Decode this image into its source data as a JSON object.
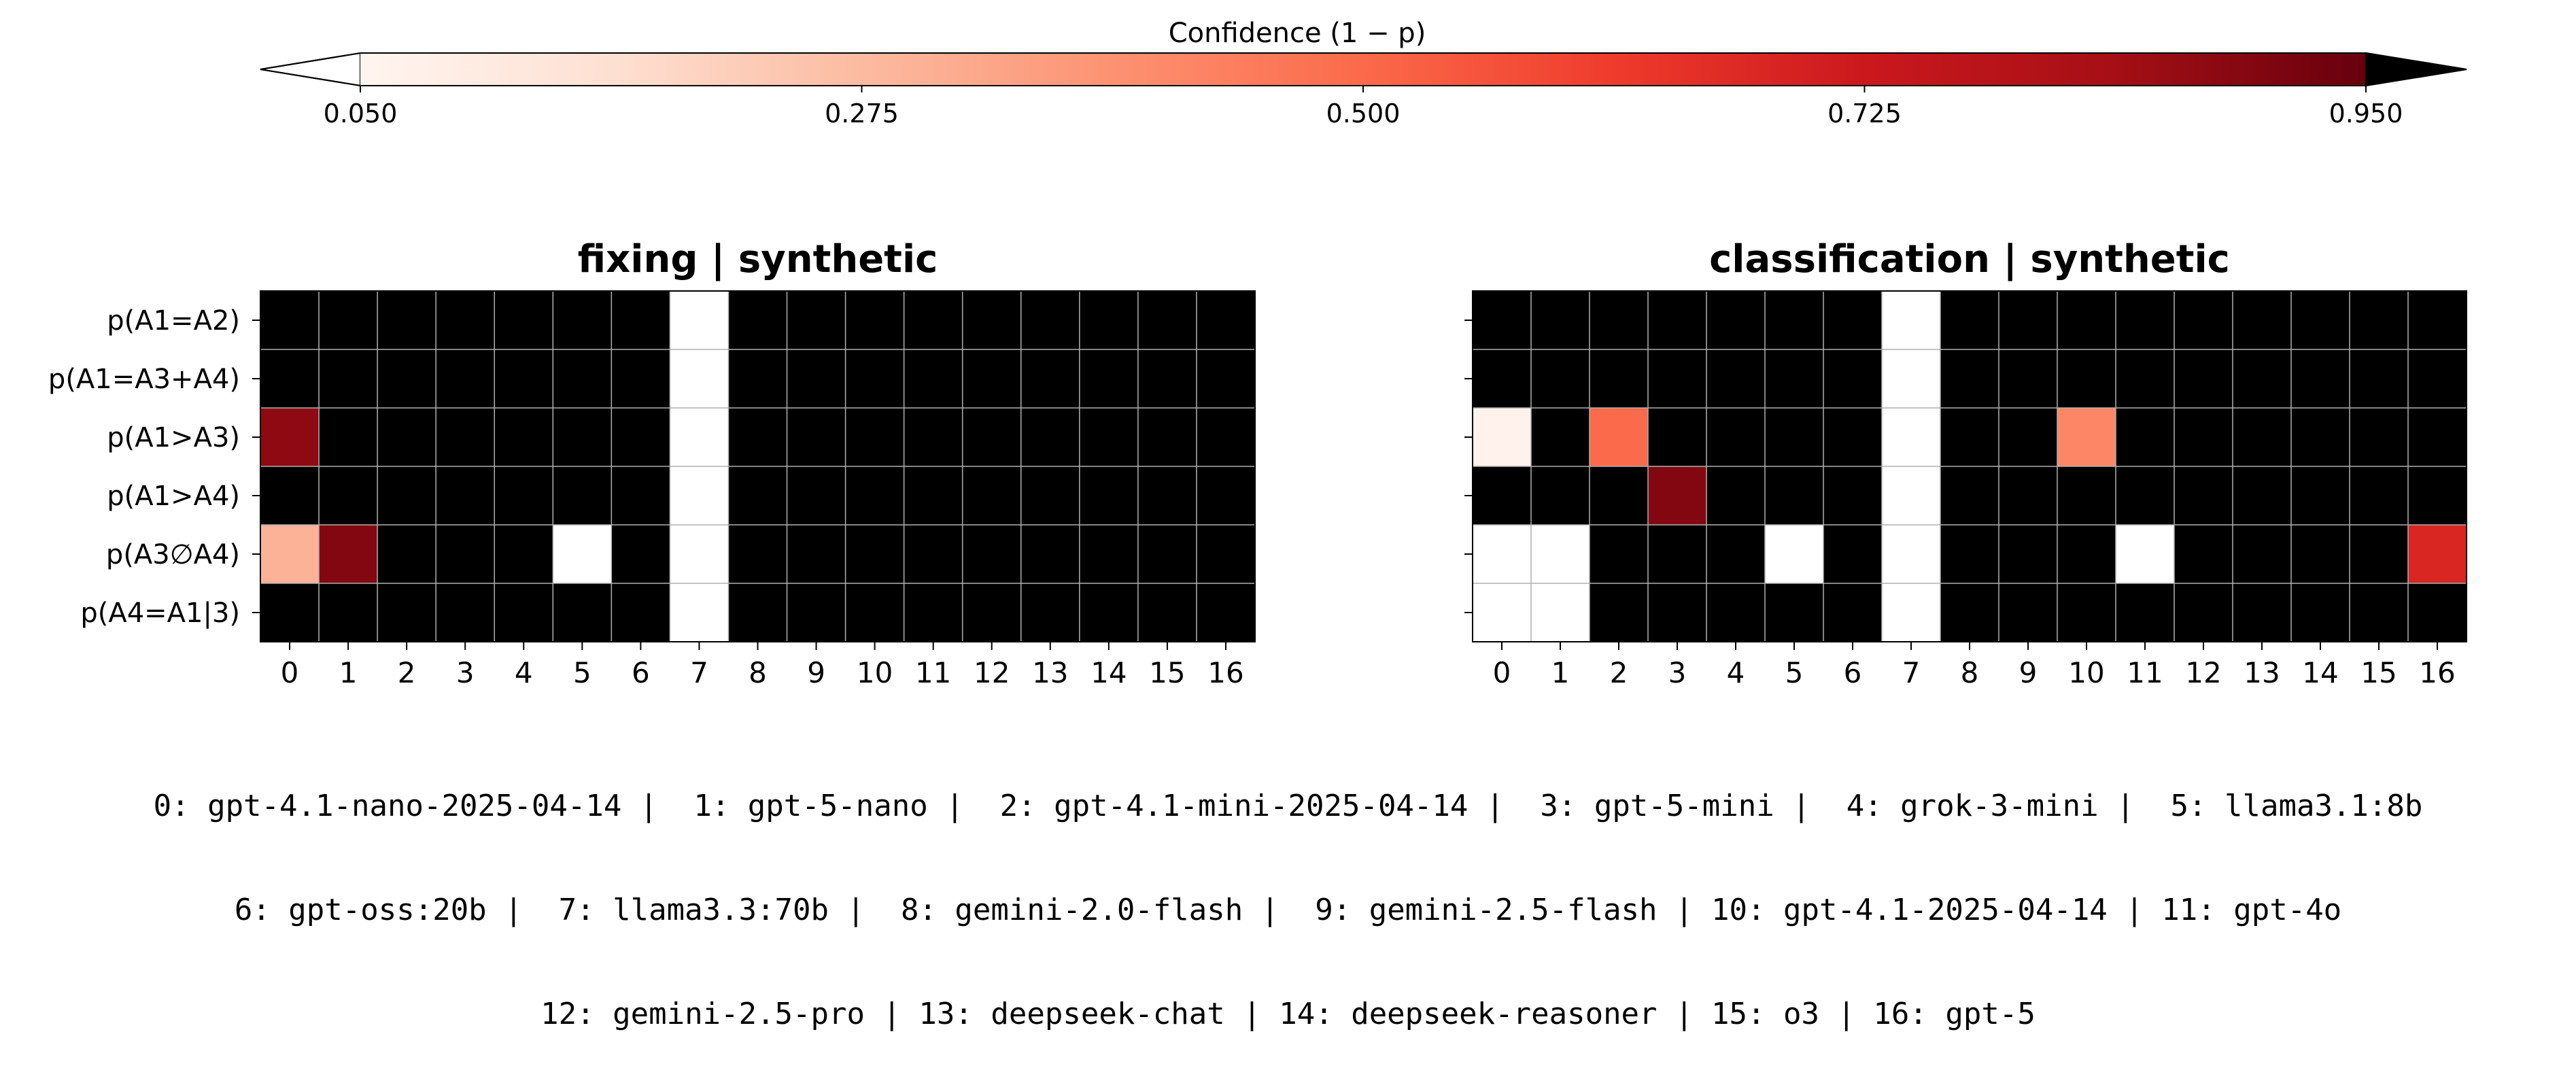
{
  "colorbar": {
    "label": "Confidence (1 − p)",
    "ticks": [
      "0.050",
      "0.275",
      "0.500",
      "0.725",
      "0.950"
    ],
    "tick_values": [
      0.05,
      0.275,
      0.5,
      0.725,
      0.95
    ],
    "vmin": 0.05,
    "vmax": 0.95,
    "extend": "both",
    "colormap": "Reds",
    "colors": [
      "#fff5f0",
      "#fee0d2",
      "#fcbba1",
      "#fc9272",
      "#fb6a4a",
      "#ef3b2c",
      "#cb181d",
      "#a50f15",
      "#67000d"
    ],
    "under_color": "#ffffff",
    "over_color": "#000000"
  },
  "chart_data": [
    {
      "type": "heatmap",
      "title": "fixing | synthetic",
      "x_categories": [
        "0",
        "1",
        "2",
        "3",
        "4",
        "5",
        "6",
        "7",
        "8",
        "9",
        "10",
        "11",
        "12",
        "13",
        "14",
        "15",
        "16"
      ],
      "y_categories": [
        "p(A1=A2)",
        "p(A1=A3+A4)",
        "p(A1>A3)",
        "p(A1>A4)",
        "p(A3∅A4)",
        "p(A4=A1|3)"
      ],
      "show_y_labels": true,
      "grid": true,
      "values": [
        [
          1,
          1,
          1,
          1,
          1,
          1,
          1,
          0,
          1,
          1,
          1,
          1,
          1,
          1,
          1,
          1,
          1
        ],
        [
          1,
          1,
          1,
          1,
          1,
          1,
          1,
          0,
          1,
          1,
          1,
          1,
          1,
          1,
          1,
          1,
          1
        ],
        [
          0.88,
          1,
          1,
          1,
          1,
          1,
          1,
          0,
          1,
          1,
          1,
          1,
          1,
          1,
          1,
          1,
          1
        ],
        [
          1,
          1,
          1,
          1,
          1,
          1,
          1,
          0,
          1,
          1,
          1,
          1,
          1,
          1,
          1,
          1,
          1
        ],
        [
          0.3,
          0.9,
          1,
          1,
          1,
          0,
          1,
          0,
          1,
          1,
          1,
          1,
          1,
          1,
          1,
          1,
          1
        ],
        [
          1,
          1,
          1,
          1,
          1,
          1,
          1,
          0,
          1,
          1,
          1,
          1,
          1,
          1,
          1,
          1,
          1
        ]
      ]
    },
    {
      "type": "heatmap",
      "title": "classification | synthetic",
      "x_categories": [
        "0",
        "1",
        "2",
        "3",
        "4",
        "5",
        "6",
        "7",
        "8",
        "9",
        "10",
        "11",
        "12",
        "13",
        "14",
        "15",
        "16"
      ],
      "y_categories": [
        "p(A1=A2)",
        "p(A1=A3+A4)",
        "p(A1>A3)",
        "p(A1>A4)",
        "p(A3∅A4)",
        "p(A4=A1|3)"
      ],
      "show_y_labels": false,
      "grid": true,
      "values": [
        [
          1,
          1,
          1,
          1,
          1,
          1,
          1,
          0,
          1,
          1,
          1,
          1,
          1,
          1,
          1,
          1,
          1
        ],
        [
          1,
          1,
          1,
          1,
          1,
          1,
          1,
          0,
          1,
          1,
          1,
          1,
          1,
          1,
          1,
          1,
          1
        ],
        [
          0.07,
          1,
          0.5,
          1,
          1,
          1,
          1,
          0,
          1,
          1,
          0.42,
          1,
          1,
          1,
          1,
          1,
          1
        ],
        [
          1,
          1,
          1,
          0.9,
          1,
          1,
          1,
          0,
          1,
          1,
          1,
          1,
          1,
          1,
          1,
          1,
          1
        ],
        [
          0,
          0,
          1,
          1,
          1,
          0,
          1,
          0,
          1,
          1,
          1,
          0,
          1,
          1,
          1,
          1,
          0.68
        ],
        [
          0,
          0,
          1,
          1,
          1,
          1,
          1,
          0,
          1,
          1,
          1,
          1,
          1,
          1,
          1,
          1,
          1
        ]
      ]
    }
  ],
  "legend": {
    "lines": [
      "0: gpt-4.1-nano-2025-04-14 |  1: gpt-5-nano |  2: gpt-4.1-mini-2025-04-14 |  3: gpt-5-mini |  4: grok-3-mini |  5: llama3.1:8b",
      "6: gpt-oss:20b |  7: llama3.3:70b |  8: gemini-2.0-flash |  9: gemini-2.5-flash | 10: gpt-4.1-2025-04-14 | 11: gpt-4o",
      "12: gemini-2.5-pro | 13: deepseek-chat | 14: deepseek-reasoner | 15: o3 | 16: gpt-5"
    ]
  }
}
